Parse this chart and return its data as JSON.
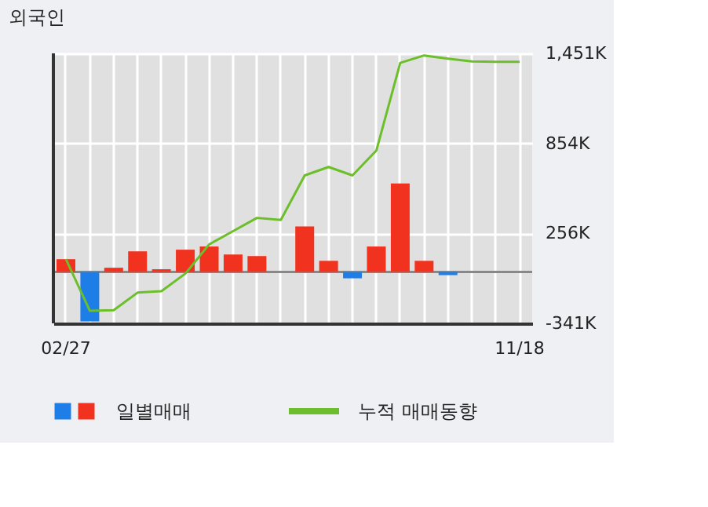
{
  "chart_data": {
    "type": "bar",
    "title": "외국인",
    "categories": [
      "02/27",
      null,
      null,
      null,
      null,
      null,
      null,
      null,
      null,
      null,
      null,
      null,
      null,
      null,
      null,
      null,
      null,
      null,
      null,
      "11/18"
    ],
    "series": [
      {
        "name": "일별매매",
        "values": [
          85,
          -328,
          28,
          137,
          18,
          148,
          169,
          116,
          106,
          null,
          303,
          74,
          -42,
          169,
          588,
          74,
          -21,
          null,
          null,
          null
        ],
        "colors": [
          "#f0321e",
          "#1e7ee8",
          "#f0321e",
          "#f0321e",
          "#f0321e",
          "#f0321e",
          "#f0321e",
          "#f0321e",
          "#f0321e",
          null,
          "#f0321e",
          "#f0321e",
          "#1e7ee8",
          "#f0321e",
          "#f0321e",
          "#f0321e",
          "#1e7ee8",
          null,
          null,
          null
        ]
      },
      {
        "name": "누적 매매동향",
        "type": "line",
        "color": "#6cbf2a",
        "values": [
          85,
          -257,
          -254,
          -137,
          -127,
          -11,
          183,
          271,
          359,
          345,
          641,
          697,
          641,
          806,
          1388,
          1437,
          1416,
          1398,
          1395,
          1395
        ]
      }
    ],
    "ylim": [
      -341,
      1451
    ],
    "yticks": [
      {
        "value": -341,
        "label": "-341K"
      },
      {
        "value": 256,
        "label": "256K"
      },
      {
        "value": 854,
        "label": "854K"
      },
      {
        "value": 1451,
        "label": "1,451K"
      }
    ],
    "grid": true,
    "legend": "bottom"
  }
}
